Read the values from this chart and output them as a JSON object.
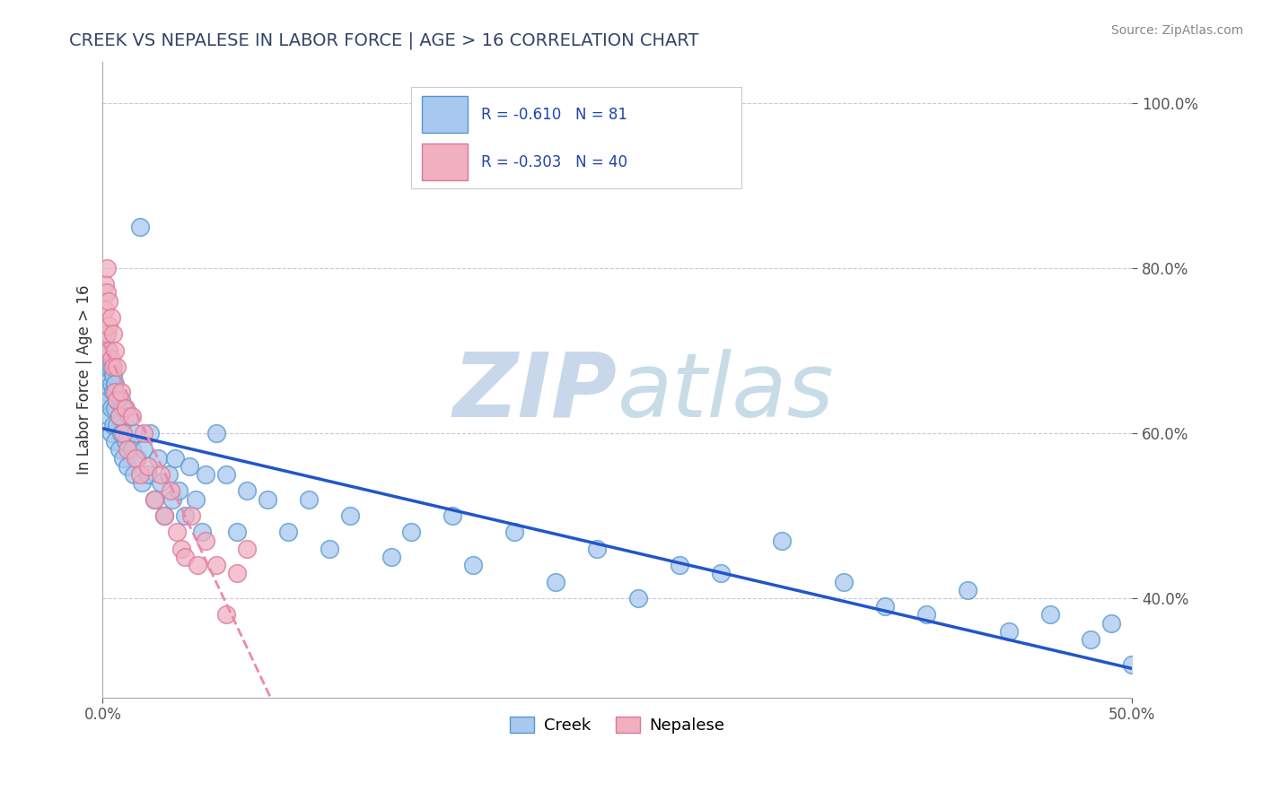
{
  "title": "CREEK VS NEPALESE IN LABOR FORCE | AGE > 16 CORRELATION CHART",
  "source_text": "Source: ZipAtlas.com",
  "ylabel": "In Labor Force | Age > 16",
  "xlim": [
    0.0,
    0.5
  ],
  "ylim": [
    0.28,
    1.05
  ],
  "xtick_positions": [
    0.0,
    0.5
  ],
  "xtick_labels": [
    "0.0%",
    "50.0%"
  ],
  "ytick_positions": [
    0.4,
    0.6,
    0.8,
    1.0
  ],
  "ytick_labels": [
    "40.0%",
    "60.0%",
    "80.0%",
    "100.0%"
  ],
  "creek_color": "#a8c8f0",
  "creek_edge_color": "#5599cc",
  "nepalese_color": "#f0b0c0",
  "nepalese_edge_color": "#dd7799",
  "creek_line_color": "#2255cc",
  "nepalese_line_color": "#ee88aa",
  "creek_R": -0.61,
  "creek_N": 81,
  "nepalese_R": -0.303,
  "nepalese_N": 40,
  "grid_color": "#bbbbcc",
  "background_color": "#ffffff",
  "watermark_color": "#c8d8ea",
  "legend_box_color": "#ffffff",
  "legend_border_color": "#cccccc",
  "creek_x": [
    0.001,
    0.001,
    0.002,
    0.002,
    0.002,
    0.003,
    0.003,
    0.003,
    0.003,
    0.004,
    0.004,
    0.004,
    0.004,
    0.005,
    0.005,
    0.005,
    0.006,
    0.006,
    0.006,
    0.007,
    0.007,
    0.008,
    0.008,
    0.009,
    0.009,
    0.01,
    0.01,
    0.011,
    0.012,
    0.013,
    0.014,
    0.015,
    0.016,
    0.017,
    0.018,
    0.019,
    0.02,
    0.022,
    0.023,
    0.025,
    0.027,
    0.028,
    0.03,
    0.032,
    0.034,
    0.035,
    0.037,
    0.04,
    0.042,
    0.045,
    0.048,
    0.05,
    0.055,
    0.06,
    0.065,
    0.07,
    0.08,
    0.09,
    0.1,
    0.11,
    0.12,
    0.14,
    0.15,
    0.17,
    0.18,
    0.2,
    0.22,
    0.24,
    0.26,
    0.28,
    0.3,
    0.33,
    0.36,
    0.38,
    0.4,
    0.42,
    0.44,
    0.46,
    0.48,
    0.49,
    0.5
  ],
  "creek_y": [
    0.71,
    0.66,
    0.69,
    0.65,
    0.72,
    0.68,
    0.64,
    0.7,
    0.62,
    0.66,
    0.63,
    0.68,
    0.6,
    0.65,
    0.61,
    0.67,
    0.63,
    0.59,
    0.66,
    0.61,
    0.64,
    0.58,
    0.62,
    0.6,
    0.64,
    0.57,
    0.63,
    0.59,
    0.56,
    0.62,
    0.58,
    0.55,
    0.6,
    0.57,
    0.85,
    0.54,
    0.58,
    0.55,
    0.6,
    0.52,
    0.57,
    0.54,
    0.5,
    0.55,
    0.52,
    0.57,
    0.53,
    0.5,
    0.56,
    0.52,
    0.48,
    0.55,
    0.6,
    0.55,
    0.48,
    0.53,
    0.52,
    0.48,
    0.52,
    0.46,
    0.5,
    0.45,
    0.48,
    0.5,
    0.44,
    0.48,
    0.42,
    0.46,
    0.4,
    0.44,
    0.43,
    0.47,
    0.42,
    0.39,
    0.38,
    0.41,
    0.36,
    0.38,
    0.35,
    0.37,
    0.32
  ],
  "nepalese_x": [
    0.001,
    0.001,
    0.002,
    0.002,
    0.002,
    0.003,
    0.003,
    0.003,
    0.004,
    0.004,
    0.005,
    0.005,
    0.006,
    0.006,
    0.007,
    0.007,
    0.008,
    0.009,
    0.01,
    0.011,
    0.012,
    0.014,
    0.016,
    0.018,
    0.02,
    0.022,
    0.025,
    0.028,
    0.03,
    0.033,
    0.036,
    0.038,
    0.04,
    0.043,
    0.046,
    0.05,
    0.055,
    0.06,
    0.065,
    0.07
  ],
  "nepalese_y": [
    0.78,
    0.75,
    0.77,
    0.72,
    0.8,
    0.73,
    0.7,
    0.76,
    0.69,
    0.74,
    0.68,
    0.72,
    0.65,
    0.7,
    0.64,
    0.68,
    0.62,
    0.65,
    0.6,
    0.63,
    0.58,
    0.62,
    0.57,
    0.55,
    0.6,
    0.56,
    0.52,
    0.55,
    0.5,
    0.53,
    0.48,
    0.46,
    0.45,
    0.5,
    0.44,
    0.47,
    0.44,
    0.38,
    0.43,
    0.46
  ]
}
